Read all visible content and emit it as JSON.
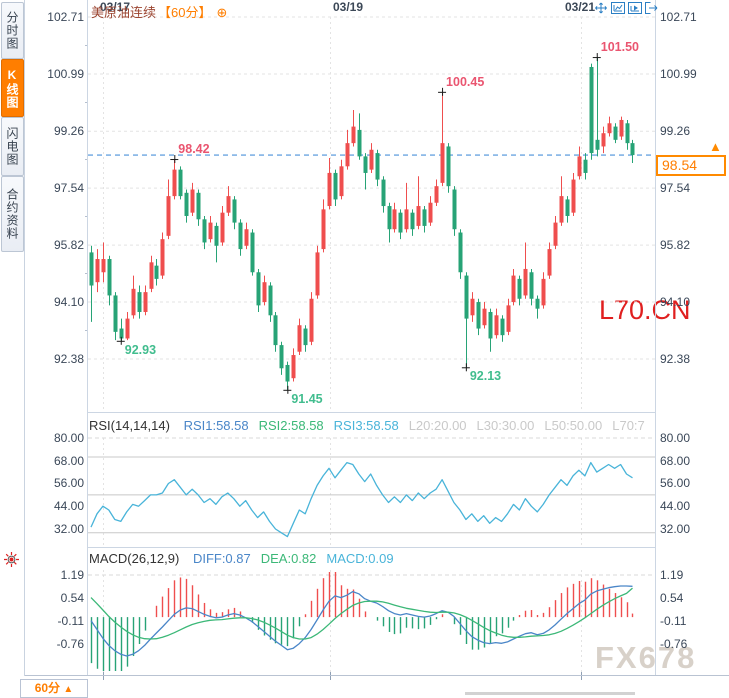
{
  "sidebar": {
    "tabs": [
      {
        "label": "分时图",
        "active": false
      },
      {
        "label": "K线图",
        "active": true
      },
      {
        "label": "闪电图",
        "active": false
      },
      {
        "label": "合约资料",
        "active": false
      }
    ]
  },
  "header": {
    "title": "美原油连续",
    "period": "【60分】",
    "expand_icon": "⊕"
  },
  "toolbar": {
    "icons": [
      "pan-crosshair",
      "chart-axis",
      "chart-play",
      "exit"
    ]
  },
  "price_tag": {
    "arrow": "▲"
  },
  "period_button": {
    "label": "60分",
    "arrow": "▲"
  },
  "watermarks": {
    "chart": "L70.CN",
    "brand": "FX678"
  },
  "x_axis": {
    "dates": [
      "03/17",
      "03/19",
      "03/21"
    ]
  },
  "rsi_panel": {
    "title": "RSI(14,14,14)",
    "legend": [
      {
        "text": "RSI1:58.58",
        "color": "#4a86c8"
      },
      {
        "text": "RSI2:58.58",
        "color": "#3cb878"
      },
      {
        "text": "RSI3:58.58",
        "color": "#49b4d9"
      },
      {
        "text": "L20:20.00",
        "color": "#c9c9c9"
      },
      {
        "text": "L30:30.00",
        "color": "#c9c9c9"
      },
      {
        "text": "L50:50.00",
        "color": "#c9c9c9"
      },
      {
        "text": "L70:7",
        "color": "#c9c9c9"
      }
    ]
  },
  "macd_panel": {
    "title": "MACD(26,12,9)",
    "legend": [
      {
        "text": "DIFF:0.87",
        "color": "#4a86c8"
      },
      {
        "text": "DEA:0.82",
        "color": "#3cb878"
      },
      {
        "text": "MACD:0.09",
        "color": "#49b4d9"
      }
    ]
  },
  "colors": {
    "up": "#ef4e4e",
    "down": "#27a376",
    "ann_high": "#ea5570",
    "ann_low": "#41bd8e",
    "price_line": "#4a90d9",
    "accent": "#ff7e00",
    "axis_text": "#3a4758",
    "grid": "#e3e3e3",
    "grid_solid": "#c8c8c8",
    "panel_border": "#ccd6e3",
    "legend_blue": "#4a86c8",
    "legend_green": "#3cb878",
    "legend_cyan": "#49b4d9",
    "marker": "#1a1a1a",
    "toolbar_blue": "#2b7fc4",
    "watermark_red": "#e01f1f"
  },
  "chart_data": {
    "type": "candlestick",
    "instrument": "美原油连续",
    "interval": "60分",
    "current_price": 98.54,
    "price_axis": [
      102.71,
      100.99,
      99.26,
      97.54,
      95.82,
      94.1,
      92.38
    ],
    "ylim": [
      92.38,
      102.71
    ],
    "date_grid_x": [
      103,
      330,
      581
    ],
    "annotations": [
      {
        "label": "92.93",
        "index": 5,
        "price": 92.93,
        "kind": "low"
      },
      {
        "label": "98.42",
        "index": 14,
        "price": 98.42,
        "kind": "high"
      },
      {
        "label": "91.45",
        "index": 33,
        "price": 91.45,
        "kind": "low"
      },
      {
        "label": "100.45",
        "index": 59,
        "price": 100.45,
        "kind": "high"
      },
      {
        "label": "92.13",
        "index": 63,
        "price": 92.13,
        "kind": "low"
      },
      {
        "label": "101.50",
        "index": 85,
        "price": 101.5,
        "kind": "high"
      }
    ],
    "candles": [
      [
        95.6,
        94.6,
        95.8,
        93.5
      ],
      [
        94.7,
        95.4,
        95.7,
        94.4
      ],
      [
        95.0,
        95.4,
        95.9,
        94.7
      ],
      [
        95.4,
        94.3,
        95.5,
        94.0
      ],
      [
        94.3,
        93.2,
        94.4,
        92.95
      ],
      [
        93.3,
        93.0,
        93.6,
        92.93
      ],
      [
        93.0,
        93.6,
        93.8,
        92.95
      ],
      [
        93.7,
        94.5,
        94.9,
        93.6
      ],
      [
        94.4,
        93.8,
        94.6,
        93.6
      ],
      [
        93.8,
        94.4,
        94.6,
        93.7
      ],
      [
        94.5,
        95.3,
        95.5,
        94.4
      ],
      [
        95.2,
        94.8,
        95.4,
        94.6
      ],
      [
        94.9,
        96.0,
        96.2,
        94.8
      ],
      [
        96.1,
        97.3,
        97.8,
        96.0
      ],
      [
        97.3,
        98.1,
        98.42,
        97.2
      ],
      [
        98.1,
        97.3,
        98.2,
        97.2
      ],
      [
        97.4,
        96.7,
        97.5,
        96.5
      ],
      [
        96.8,
        97.5,
        97.7,
        96.7
      ],
      [
        97.4,
        96.6,
        97.5,
        96.4
      ],
      [
        96.6,
        95.9,
        96.7,
        95.7
      ],
      [
        96.0,
        96.5,
        96.7,
        95.9
      ],
      [
        96.4,
        95.8,
        96.5,
        95.3
      ],
      [
        95.9,
        96.8,
        97.0,
        95.8
      ],
      [
        96.8,
        97.3,
        97.6,
        96.7
      ],
      [
        97.2,
        96.5,
        97.3,
        96.3
      ],
      [
        96.5,
        95.7,
        96.6,
        95.5
      ],
      [
        95.8,
        96.3,
        96.5,
        95.7
      ],
      [
        96.2,
        95.0,
        96.3,
        94.9
      ],
      [
        95.0,
        94.0,
        95.1,
        93.8
      ],
      [
        94.1,
        94.7,
        94.9,
        94.0
      ],
      [
        94.6,
        93.7,
        94.7,
        93.5
      ],
      [
        93.7,
        92.8,
        93.8,
        92.6
      ],
      [
        92.8,
        92.1,
        92.9,
        91.9
      ],
      [
        92.2,
        91.7,
        92.3,
        91.45
      ],
      [
        91.8,
        92.5,
        92.7,
        91.7
      ],
      [
        92.6,
        93.4,
        93.6,
        92.5
      ],
      [
        93.3,
        92.8,
        93.4,
        92.6
      ],
      [
        92.9,
        94.2,
        94.4,
        92.8
      ],
      [
        94.3,
        95.6,
        95.8,
        94.2
      ],
      [
        95.7,
        96.9,
        97.2,
        95.6
      ],
      [
        97.0,
        98.0,
        98.45,
        96.9
      ],
      [
        98.0,
        97.2,
        98.1,
        97.0
      ],
      [
        97.3,
        98.2,
        98.4,
        97.2
      ],
      [
        98.2,
        98.9,
        99.3,
        98.1
      ],
      [
        98.9,
        99.4,
        99.9,
        98.8
      ],
      [
        99.3,
        98.5,
        99.8,
        98.4
      ],
      [
        98.5,
        98.0,
        98.6,
        97.5
      ],
      [
        98.1,
        98.7,
        98.9,
        98.0
      ],
      [
        98.6,
        97.8,
        98.7,
        97.6
      ],
      [
        97.8,
        97.0,
        97.9,
        96.8
      ],
      [
        97.0,
        96.3,
        97.1,
        95.9
      ],
      [
        96.3,
        96.9,
        97.1,
        96.2
      ],
      [
        96.8,
        96.2,
        96.9,
        96.0
      ],
      [
        96.3,
        96.9,
        97.7,
        96.2
      ],
      [
        96.8,
        96.3,
        96.9,
        96.1
      ],
      [
        96.4,
        97.0,
        97.9,
        96.3
      ],
      [
        96.9,
        96.4,
        97.0,
        96.2
      ],
      [
        96.5,
        97.1,
        97.3,
        96.4
      ],
      [
        97.1,
        97.6,
        97.8,
        97.0
      ],
      [
        97.7,
        98.9,
        100.45,
        97.6
      ],
      [
        98.8,
        97.6,
        98.9,
        97.4
      ],
      [
        97.5,
        96.3,
        97.6,
        96.1
      ],
      [
        96.2,
        95.0,
        96.3,
        94.8
      ],
      [
        94.9,
        93.6,
        95.0,
        92.13
      ],
      [
        93.7,
        94.2,
        94.4,
        93.5
      ],
      [
        94.1,
        93.3,
        94.2,
        93.1
      ],
      [
        93.4,
        93.9,
        94.1,
        93.3
      ],
      [
        93.8,
        93.0,
        93.9,
        92.6
      ],
      [
        93.1,
        93.7,
        93.9,
        93.0
      ],
      [
        93.6,
        93.1,
        93.7,
        92.9
      ],
      [
        93.2,
        94.0,
        94.2,
        93.1
      ],
      [
        94.1,
        94.9,
        95.1,
        94.0
      ],
      [
        94.8,
        94.2,
        94.9,
        94.0
      ],
      [
        94.3,
        95.1,
        95.9,
        94.2
      ],
      [
        95.0,
        94.2,
        95.1,
        94.0
      ],
      [
        94.2,
        93.9,
        94.3,
        93.6
      ],
      [
        94.0,
        94.8,
        95.0,
        93.9
      ],
      [
        94.9,
        95.7,
        95.9,
        94.8
      ],
      [
        95.8,
        96.5,
        96.7,
        95.7
      ],
      [
        96.5,
        97.3,
        97.9,
        96.4
      ],
      [
        97.2,
        96.7,
        97.3,
        96.5
      ],
      [
        96.8,
        97.8,
        98.0,
        96.7
      ],
      [
        97.9,
        98.5,
        98.8,
        97.8
      ],
      [
        98.4,
        98.0,
        98.6,
        97.8
      ],
      [
        101.2,
        98.6,
        101.3,
        98.4
      ],
      [
        99.0,
        98.7,
        101.5,
        98.5
      ],
      [
        98.8,
        99.2,
        99.4,
        98.6
      ],
      [
        99.2,
        99.5,
        99.7,
        99.1
      ],
      [
        99.4,
        99.0,
        99.5,
        98.9
      ],
      [
        99.1,
        99.6,
        99.7,
        99.0
      ],
      [
        99.5,
        98.9,
        99.6,
        98.7
      ],
      [
        98.9,
        98.54,
        99.0,
        98.3
      ]
    ],
    "rsi": {
      "axis": [
        80.0,
        68.0,
        56.0,
        44.0,
        32.0
      ],
      "levels": [
        70,
        50,
        30
      ],
      "values": [
        33,
        40,
        44,
        42,
        37,
        36,
        41,
        45,
        44,
        47,
        50,
        50,
        51,
        56,
        58,
        54,
        50,
        53,
        50,
        46,
        48,
        45,
        49,
        51,
        48,
        44,
        47,
        42,
        38,
        41,
        36,
        32,
        30,
        28,
        35,
        42,
        40,
        48,
        55,
        60,
        64,
        59,
        63,
        67,
        66,
        61,
        57,
        61,
        55,
        50,
        46,
        49,
        46,
        50,
        47,
        51,
        48,
        51,
        53,
        58,
        52,
        46,
        42,
        37,
        40,
        36,
        39,
        35,
        38,
        36,
        40,
        45,
        42,
        48,
        44,
        41,
        45,
        50,
        54,
        58,
        55,
        60,
        63,
        60,
        67,
        62,
        64,
        66,
        64,
        66,
        61,
        59
      ]
    },
    "macd": {
      "axis": [
        1.19,
        0.54,
        -0.11,
        -0.76
      ],
      "diff": [
        -0.1,
        -0.35,
        -0.6,
        -0.8,
        -0.95,
        -1.05,
        -1.1,
        -1.05,
        -0.95,
        -0.8,
        -0.62,
        -0.45,
        -0.28,
        -0.1,
        0.08,
        0.2,
        0.26,
        0.24,
        0.16,
        0.08,
        0.02,
        -0.02,
        0.0,
        0.06,
        0.1,
        0.06,
        -0.02,
        -0.12,
        -0.26,
        -0.4,
        -0.54,
        -0.68,
        -0.8,
        -0.92,
        -0.88,
        -0.75,
        -0.58,
        -0.35,
        -0.08,
        0.2,
        0.45,
        0.6,
        0.55,
        0.62,
        0.72,
        0.66,
        0.52,
        0.45,
        0.4,
        0.3,
        0.18,
        0.1,
        0.06,
        0.1,
        0.06,
        0.02,
        0.0,
        0.03,
        0.1,
        0.18,
        0.14,
        0.02,
        -0.18,
        -0.38,
        -0.55,
        -0.65,
        -0.72,
        -0.75,
        -0.72,
        -0.74,
        -0.7,
        -0.62,
        -0.54,
        -0.47,
        -0.44,
        -0.5,
        -0.46,
        -0.36,
        -0.22,
        -0.06,
        0.1,
        0.24,
        0.38,
        0.48,
        0.65,
        0.74,
        0.79,
        0.83,
        0.86,
        0.88,
        0.88,
        0.87
      ],
      "dea": [
        0.55,
        0.38,
        0.2,
        0.02,
        -0.14,
        -0.28,
        -0.4,
        -0.5,
        -0.57,
        -0.61,
        -0.62,
        -0.61,
        -0.57,
        -0.51,
        -0.44,
        -0.36,
        -0.28,
        -0.21,
        -0.16,
        -0.12,
        -0.09,
        -0.08,
        -0.07,
        -0.05,
        -0.03,
        -0.02,
        -0.02,
        -0.04,
        -0.08,
        -0.14,
        -0.22,
        -0.31,
        -0.41,
        -0.51,
        -0.58,
        -0.62,
        -0.62,
        -0.58,
        -0.48,
        -0.35,
        -0.2,
        -0.04,
        0.1,
        0.22,
        0.33,
        0.4,
        0.44,
        0.45,
        0.45,
        0.43,
        0.39,
        0.34,
        0.29,
        0.25,
        0.22,
        0.19,
        0.16,
        0.14,
        0.13,
        0.14,
        0.14,
        0.12,
        0.07,
        0.0,
        -0.09,
        -0.19,
        -0.29,
        -0.38,
        -0.45,
        -0.51,
        -0.55,
        -0.57,
        -0.57,
        -0.56,
        -0.54,
        -0.53,
        -0.52,
        -0.5,
        -0.46,
        -0.4,
        -0.32,
        -0.23,
        -0.13,
        -0.02,
        0.1,
        0.22,
        0.33,
        0.43,
        0.52,
        0.6,
        0.67,
        0.82
      ]
    }
  }
}
